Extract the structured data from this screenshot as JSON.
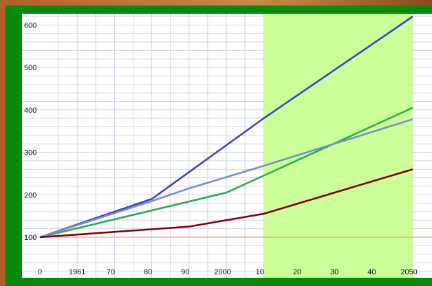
{
  "colors": {
    "frame": "#0a8a0a",
    "plot_background": "#ffffff",
    "grid": "#d0d6e6",
    "projection_band": "#ccff99",
    "baseline": "#f0a070"
  },
  "chart_data": {
    "type": "line",
    "title": "",
    "xlabel": "",
    "ylabel": "",
    "xlim": [
      1951,
      2055
    ],
    "ylim": [
      0,
      620
    ],
    "x_ticks": [
      {
        "value": 1951,
        "label": "0"
      },
      {
        "value": 1961,
        "label": "1961"
      },
      {
        "value": 1970,
        "label": "70"
      },
      {
        "value": 1980,
        "label": "80"
      },
      {
        "value": 1990,
        "label": "90"
      },
      {
        "value": 2000,
        "label": "2000"
      },
      {
        "value": 2010,
        "label": "10"
      },
      {
        "value": 2020,
        "label": "20"
      },
      {
        "value": 2030,
        "label": "30"
      },
      {
        "value": 2040,
        "label": "40"
      },
      {
        "value": 2050,
        "label": "2050"
      }
    ],
    "y_ticks": [
      {
        "value": 100,
        "label": "100"
      },
      {
        "value": 200,
        "label": "200"
      },
      {
        "value": 300,
        "label": "300"
      },
      {
        "value": 400,
        "label": "400"
      },
      {
        "value": 500,
        "label": "500"
      },
      {
        "value": 600,
        "label": "600"
      }
    ],
    "grid": true,
    "legend": "none",
    "projection_band": {
      "from": 2011,
      "to": 2051,
      "color": "#ccff99"
    },
    "baseline": {
      "y": 100,
      "color": "#f0a070"
    },
    "series": [
      {
        "color": "#3a44c0",
        "points": [
          [
            1951,
            100
          ],
          [
            1981,
            190
          ],
          [
            2011,
            380
          ],
          [
            2051,
            620
          ]
        ]
      },
      {
        "color": "#2eaa55",
        "points": [
          [
            1951,
            100
          ],
          [
            2001,
            205
          ],
          [
            2011,
            245
          ],
          [
            2051,
            405
          ]
        ]
      },
      {
        "color": "#7890c0",
        "points": [
          [
            1951,
            100
          ],
          [
            1981,
            185
          ],
          [
            1991,
            215
          ],
          [
            2011,
            268
          ],
          [
            2051,
            378
          ]
        ]
      },
      {
        "color": "#800010",
        "points": [
          [
            1951,
            100
          ],
          [
            1991,
            125
          ],
          [
            2011,
            155
          ],
          [
            2051,
            260
          ]
        ]
      }
    ]
  }
}
